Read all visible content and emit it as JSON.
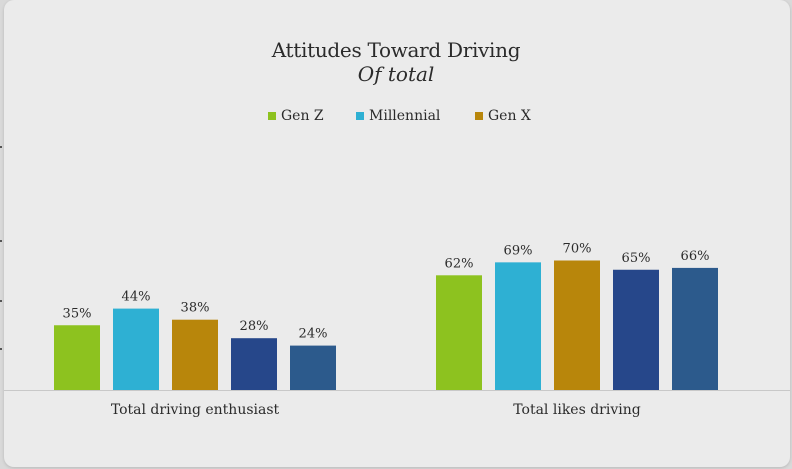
{
  "chart_data": {
    "type": "bar",
    "title": "Attitudes Toward Driving",
    "subtitle": "Of total",
    "categories": [
      "Total driving enthusiast",
      "Total likes driving"
    ],
    "series": [
      {
        "name": "Gen Z",
        "color": "#8dc21f",
        "values": [
          35,
          62
        ],
        "labels": [
          "35%",
          "62%"
        ]
      },
      {
        "name": "Millennial",
        "color": "#2eb0d3",
        "values": [
          44,
          69
        ],
        "labels": [
          "44%",
          "69%"
        ]
      },
      {
        "name": "Gen X",
        "color": "#b8860b",
        "values": [
          38,
          70
        ],
        "labels": [
          "38%",
          "70%"
        ]
      },
      {
        "name": "",
        "color": "#26478a",
        "values": [
          28,
          65
        ],
        "labels": [
          "28%",
          "65%"
        ]
      },
      {
        "name": "",
        "color": "#2c5a8c",
        "values": [
          24,
          66
        ],
        "labels": [
          "24%",
          "66%"
        ]
      }
    ],
    "ylim": [
      0,
      100
    ],
    "grid": false,
    "legend_position": "top"
  }
}
